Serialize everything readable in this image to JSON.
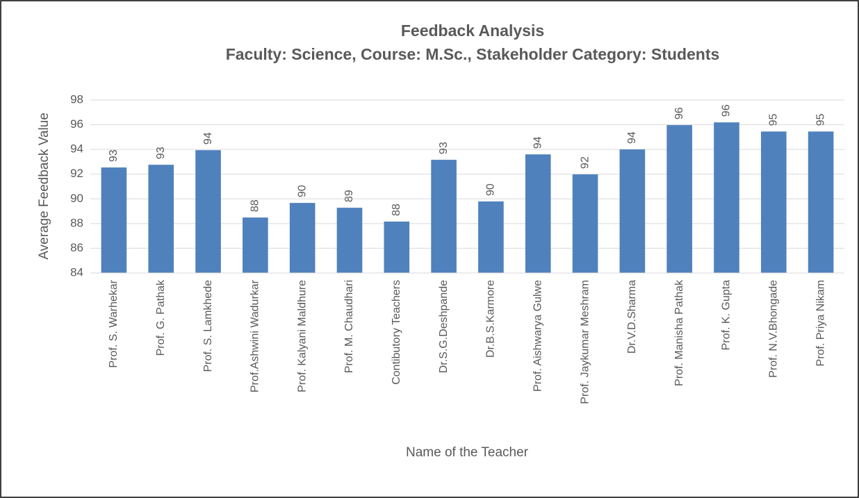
{
  "chart_data": {
    "type": "bar",
    "title": "Feedback Analysis",
    "subtitle": "Faculty: Science, Course: M.Sc., Stakeholder Category: Students",
    "xlabel": "Name of the Teacher",
    "ylabel": "Average Feedback Value",
    "categories": [
      "Prof. S. Warhekar",
      "Prof. G. Pathak",
      "Prof. S. Lamkhede",
      "Prof.Ashwini Wadurkar",
      "Prof. Kalyani Maldhure",
      "Prof. M. Chaudhari",
      "Contibutory Teachers",
      "Dr.S.G.Deshpande",
      "Dr.B.S.Karmore",
      "Prof. Aishwarya Gulwe",
      "Prof. Jaykumar Meshram",
      "Dr.V.D.Sharma",
      "Prof. Manisha Pathak",
      "Prof. K. Gupta",
      "Prof. N.V.Bhongade",
      "Prof. Priya Nikam"
    ],
    "values": [
      92.54,
      92.76,
      93.94,
      88.49,
      89.67,
      89.28,
      88.16,
      93.16,
      89.79,
      93.6,
      91.98,
      94.0,
      95.97,
      96.19,
      95.45,
      95.45
    ],
    "value_labels": [
      "93",
      "93",
      "94",
      "88",
      "90",
      "89",
      "88",
      "93",
      "90",
      "94",
      "92",
      "94",
      "96",
      "96",
      "95",
      "95"
    ],
    "color": "#4f81bd",
    "ylim": [
      84,
      98
    ],
    "yticks": [
      84,
      86,
      88,
      90,
      92,
      94,
      96,
      98
    ],
    "grid": true
  }
}
